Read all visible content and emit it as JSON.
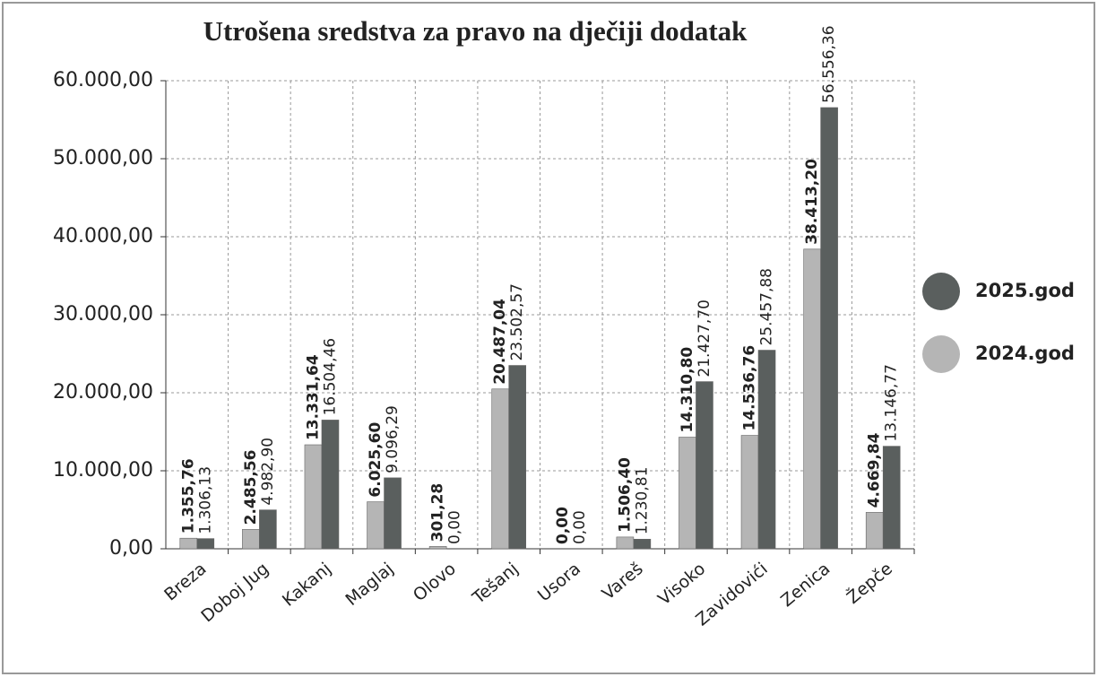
{
  "chart_data": {
    "type": "bar",
    "title": "Utrošena sredstva za pravo na dječiji dodatak",
    "categories": [
      "Breza",
      "Doboj Jug",
      "Kakanj",
      "Maglaj",
      "Olovo",
      "Tešanj",
      "Usora",
      "Vareš",
      "Visoko",
      "Zavidovići",
      "Zenica",
      "Žepče"
    ],
    "series": [
      {
        "name": "2024.god",
        "color": "#b5b5b5",
        "values": [
          1355.76,
          2485.56,
          13331.64,
          6025.6,
          301.28,
          20487.04,
          0,
          1506.4,
          14310.8,
          14536.76,
          38413.2,
          4669.84
        ],
        "value_labels": [
          "1.355,76",
          "2.485,56",
          "13.331,64",
          "6.025,60",
          "301,28",
          "20.487,04",
          "0,00",
          "1.506,40",
          "14.310,80",
          "14.536,76",
          "38.413,20",
          "4.669,84"
        ]
      },
      {
        "name": "2025.god",
        "color": "#5a5f5e",
        "values": [
          1306.13,
          4982.9,
          16504.46,
          9096.29,
          0,
          23502.57,
          0,
          1230.81,
          21427.7,
          25457.88,
          56556.36,
          13146.77
        ],
        "value_labels": [
          "1.306,13",
          "4.982,90",
          "16.504,46",
          "9.096,29",
          "0,00",
          "23.502,57",
          "0,00",
          "1.230,81",
          "21.427,70",
          "25.457,88",
          "56.556,36",
          "13.146,77"
        ]
      }
    ],
    "ylim": [
      0,
      60000
    ],
    "yticks": [
      {
        "value": 0,
        "label": "0,00"
      },
      {
        "value": 10000,
        "label": "10.000,00"
      },
      {
        "value": 20000,
        "label": "20.000,00"
      },
      {
        "value": 30000,
        "label": "30.000,00"
      },
      {
        "value": 40000,
        "label": "40.000,00"
      },
      {
        "value": 50000,
        "label": "50.000,00"
      },
      {
        "value": 60000,
        "label": "60.000,00"
      }
    ],
    "grid": true
  }
}
